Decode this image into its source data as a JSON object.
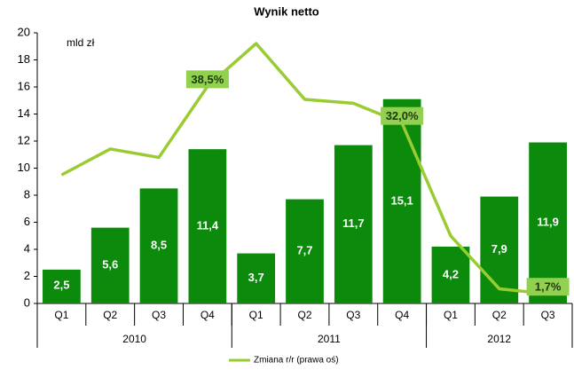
{
  "chart_data": {
    "type": "bar_line",
    "title": "Wynik netto",
    "annotation": "mld zł",
    "groups": [
      {
        "name": "2010",
        "categories": [
          "Q1",
          "Q2",
          "Q3",
          "Q4"
        ]
      },
      {
        "name": "2011",
        "categories": [
          "Q1",
          "Q2",
          "Q3",
          "Q4"
        ]
      },
      {
        "name": "2012",
        "categories": [
          "Q1",
          "Q2",
          "Q3"
        ]
      }
    ],
    "ylim": [
      0,
      20
    ],
    "yticks": [
      0,
      2,
      4,
      6,
      8,
      10,
      12,
      14,
      16,
      18,
      20
    ],
    "y2lim": [
      0,
      48
    ],
    "grid": false,
    "legend": "bottom",
    "series": [
      {
        "type": "bar",
        "color": "#0b8a0b",
        "values": [
          2.5,
          5.6,
          8.5,
          11.4,
          3.7,
          7.7,
          11.7,
          15.1,
          4.2,
          7.9,
          11.9
        ],
        "value_labels": [
          "2,5",
          "5,6",
          "8,5",
          "11,4",
          "3,7",
          "7,7",
          "11,7",
          "15,1",
          "4,2",
          "7,9",
          "11,9"
        ]
      },
      {
        "type": "line",
        "name": "Zmiana r/r (prawa oś)",
        "axis": "y2",
        "color": "#99cc33",
        "values": [
          22.8,
          27.4,
          25.9,
          38.5,
          46.1,
          36.2,
          35.5,
          32.0,
          12.0,
          2.6,
          1.7
        ],
        "value_labels": [
          null,
          null,
          null,
          "38,5%",
          null,
          null,
          null,
          "32,0%",
          null,
          null,
          "1,7%"
        ]
      }
    ]
  }
}
